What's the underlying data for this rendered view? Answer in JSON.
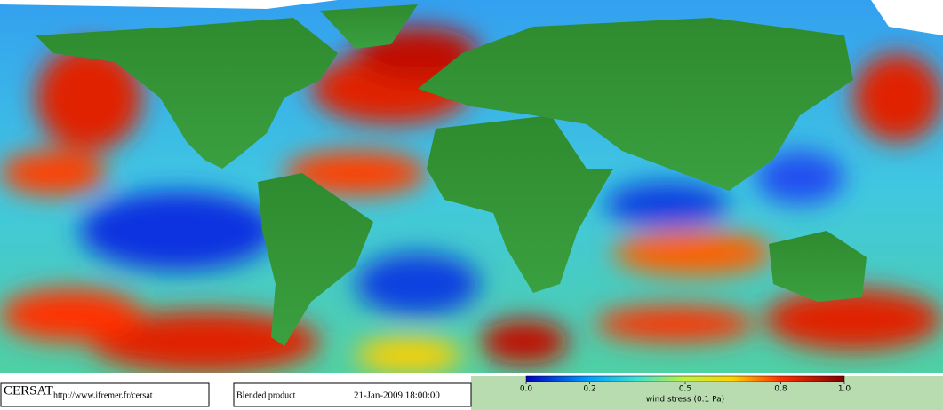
{
  "logo": {
    "name": "CERSAT",
    "url": "http://www.ifremer.fr/cersat"
  },
  "product": "Blended product",
  "timestamp": "21-Jan-2009 18:00:00",
  "colorbar": {
    "label": "wind stress (0.1 Pa)",
    "ticks": [
      {
        "value": 0,
        "label": "0.0"
      },
      0.2,
      0.5,
      0.8,
      {
        "value": 1,
        "label": "1.0"
      }
    ],
    "range": [
      0,
      1
    ]
  }
}
